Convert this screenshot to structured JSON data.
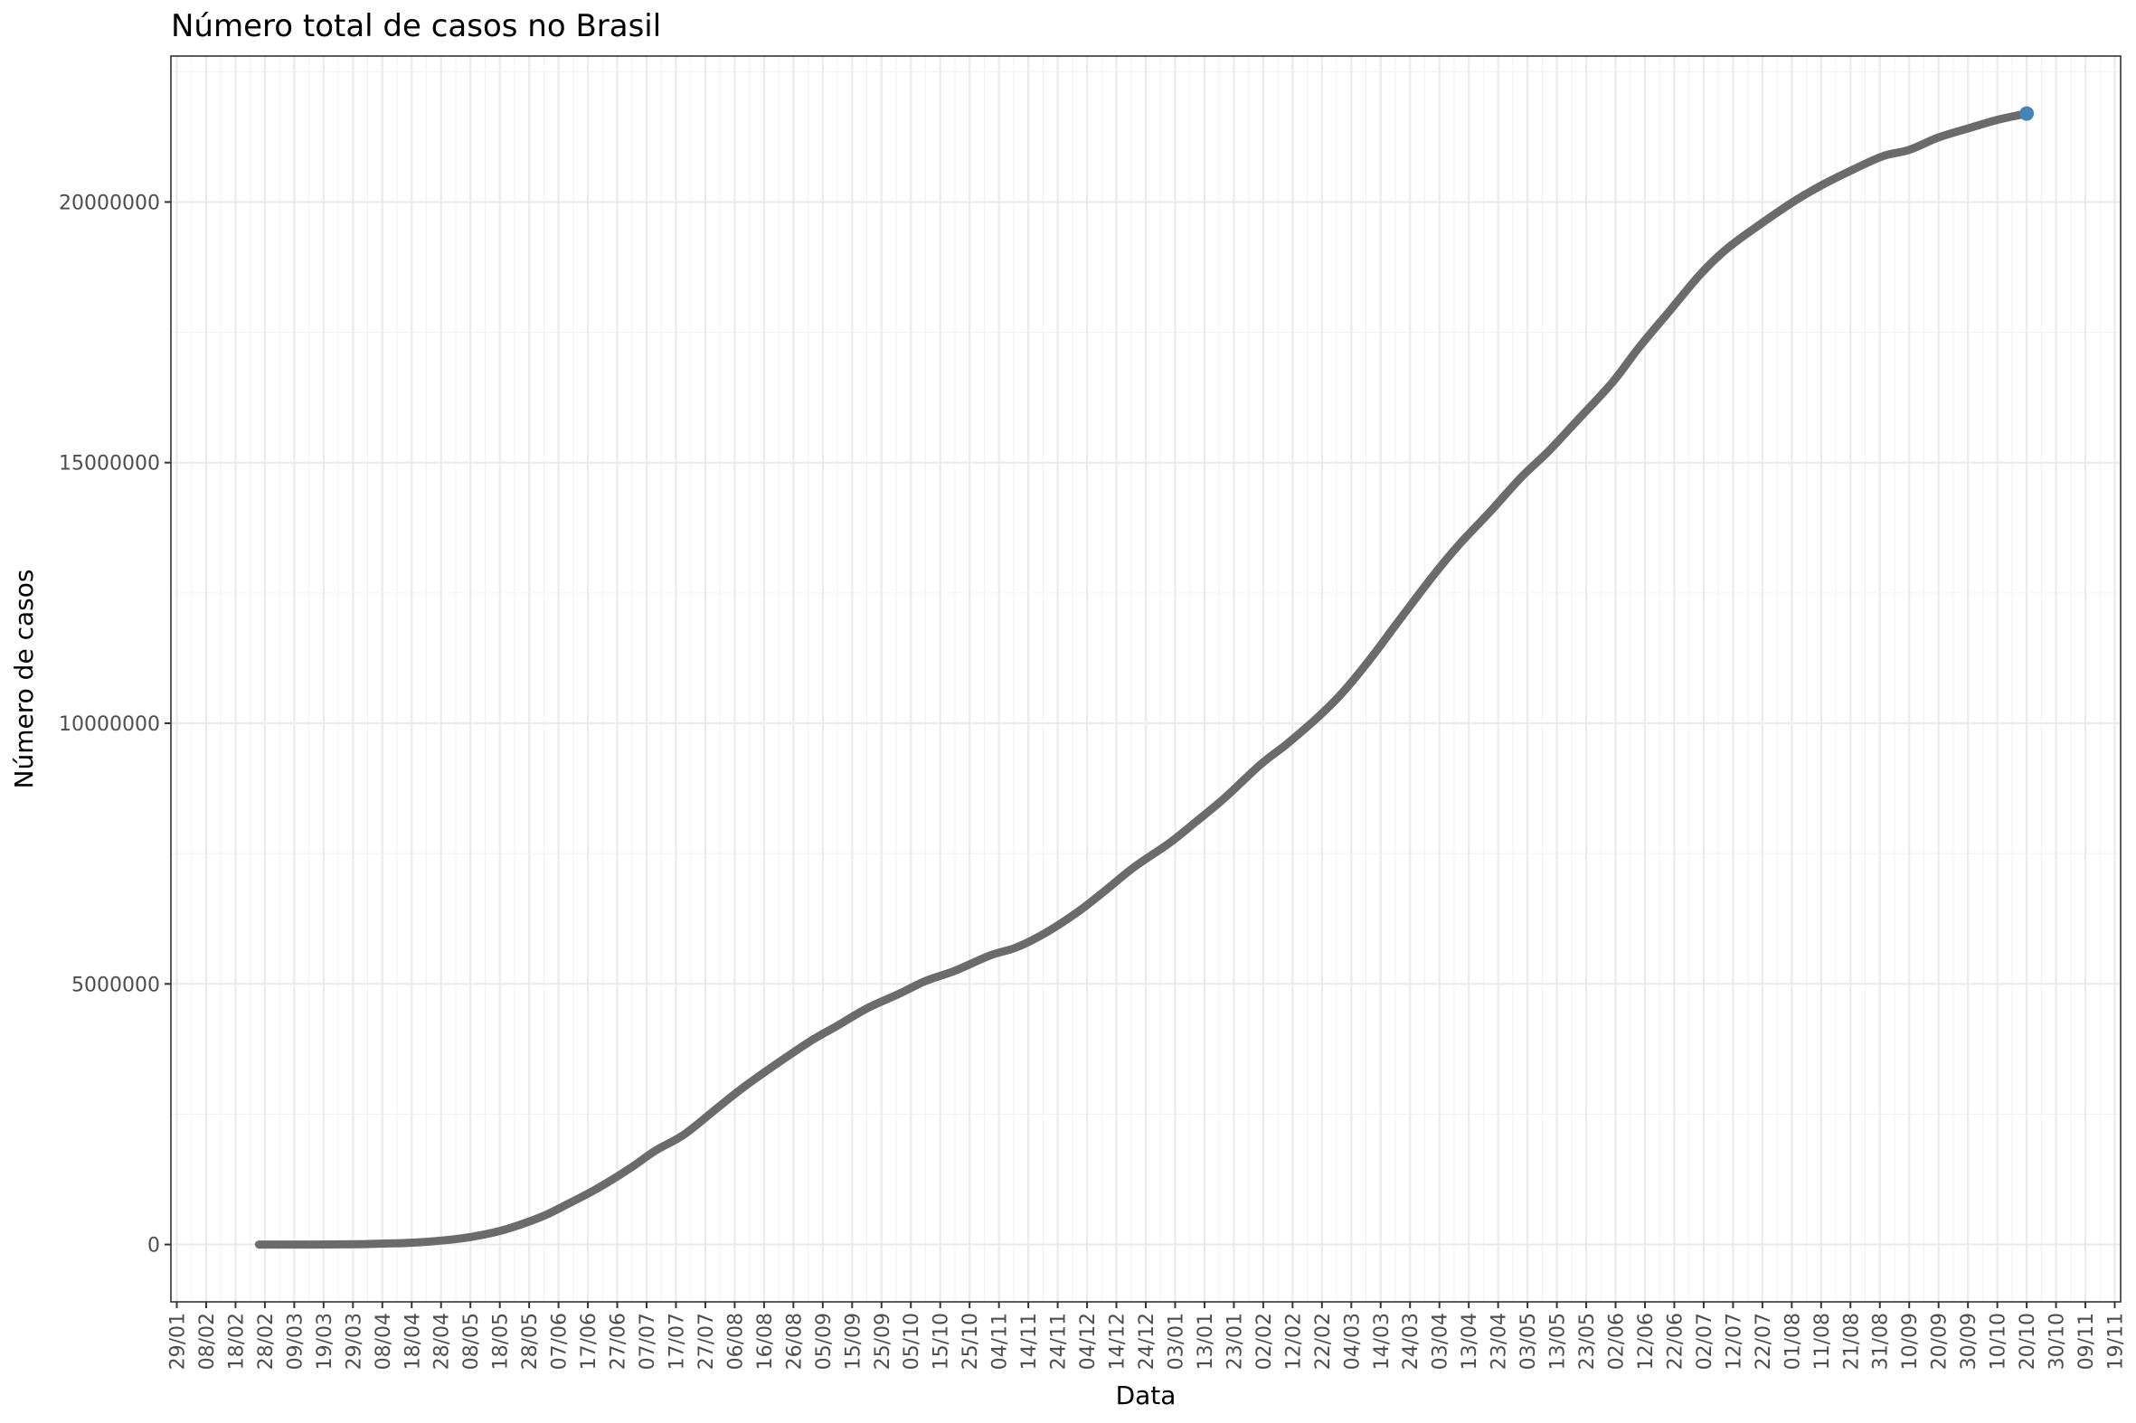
{
  "chart_data": {
    "type": "line",
    "title": "Número total de casos no Brasil",
    "xlabel": "Data",
    "ylabel": "Número de casos",
    "x_axis": {
      "type": "date",
      "range": [
        "2020-01-27",
        "2021-11-21"
      ],
      "tick_start": "2020-01-29",
      "tick_step_days": 10,
      "tick_format": "DD/MM",
      "tick_label_rotation": -90
    },
    "y_axis": {
      "range": [
        -1100000,
        22800000
      ],
      "ticks": [
        0,
        5000000,
        10000000,
        15000000,
        20000000
      ],
      "tick_labels": [
        "0",
        "5000000",
        "10000000",
        "15000000",
        "20000000"
      ]
    },
    "grid": true,
    "legend": "none",
    "colors": {
      "line": "#6b6b6b",
      "points": "#4682b4",
      "panel_border": "#333333",
      "grid": "#ebebeb"
    },
    "series": [
      {
        "points": [
          [
            "2020-02-26",
            0
          ],
          [
            "2020-03-10",
            30
          ],
          [
            "2020-03-20",
            900
          ],
          [
            "2020-03-31",
            5700
          ],
          [
            "2020-04-10",
            19600
          ],
          [
            "2020-04-20",
            40600
          ],
          [
            "2020-05-01",
            91600
          ],
          [
            "2020-05-10",
            162700
          ],
          [
            "2020-05-20",
            291600
          ],
          [
            "2020-06-01",
            526400
          ],
          [
            "2020-06-10",
            772400
          ],
          [
            "2020-06-20",
            1067600
          ],
          [
            "2020-07-01",
            1448800
          ],
          [
            "2020-07-10",
            1800800
          ],
          [
            "2020-07-20",
            2118600
          ],
          [
            "2020-08-01",
            2662400
          ],
          [
            "2020-08-10",
            3057500
          ],
          [
            "2020-08-20",
            3456700
          ],
          [
            "2020-09-01",
            3908300
          ],
          [
            "2020-09-10",
            4197900
          ],
          [
            "2020-09-20",
            4528200
          ],
          [
            "2020-10-01",
            4810900
          ],
          [
            "2020-10-10",
            5055900
          ],
          [
            "2020-10-20",
            5250700
          ],
          [
            "2020-11-01",
            5545700
          ],
          [
            "2020-11-10",
            5700000
          ],
          [
            "2020-11-20",
            5983100
          ],
          [
            "2020-12-01",
            6386800
          ],
          [
            "2020-12-10",
            6781800
          ],
          [
            "2020-12-20",
            7238600
          ],
          [
            "2021-01-01",
            7700600
          ],
          [
            "2021-01-10",
            8105800
          ],
          [
            "2021-01-20",
            8573900
          ],
          [
            "2021-02-01",
            9204700
          ],
          [
            "2021-02-10",
            9599600
          ],
          [
            "2021-02-20",
            10084200
          ],
          [
            "2021-03-01",
            10587000
          ],
          [
            "2021-03-10",
            11202300
          ],
          [
            "2021-03-20",
            11950500
          ],
          [
            "2021-04-01",
            12839800
          ],
          [
            "2021-04-10",
            13445000
          ],
          [
            "2021-04-20",
            14043100
          ],
          [
            "2021-05-01",
            14725900
          ],
          [
            "2021-05-10",
            15209000
          ],
          [
            "2021-05-20",
            15812000
          ],
          [
            "2021-06-01",
            16545500
          ],
          [
            "2021-06-10",
            17210900
          ],
          [
            "2021-06-20",
            17883800
          ],
          [
            "2021-07-01",
            18622300
          ],
          [
            "2021-07-10",
            19106900
          ],
          [
            "2021-07-20",
            19523700
          ],
          [
            "2021-08-01",
            19985800
          ],
          [
            "2021-08-10",
            20286000
          ],
          [
            "2021-08-20",
            20570900
          ],
          [
            "2021-09-01",
            20877800
          ],
          [
            "2021-09-10",
            20999800
          ],
          [
            "2021-09-20",
            21239800
          ],
          [
            "2021-10-01",
            21427000
          ],
          [
            "2021-10-10",
            21575600
          ],
          [
            "2021-10-20",
            21697100
          ]
        ],
        "last_point": [
          "2021-10-20",
          21697100
        ]
      }
    ]
  }
}
